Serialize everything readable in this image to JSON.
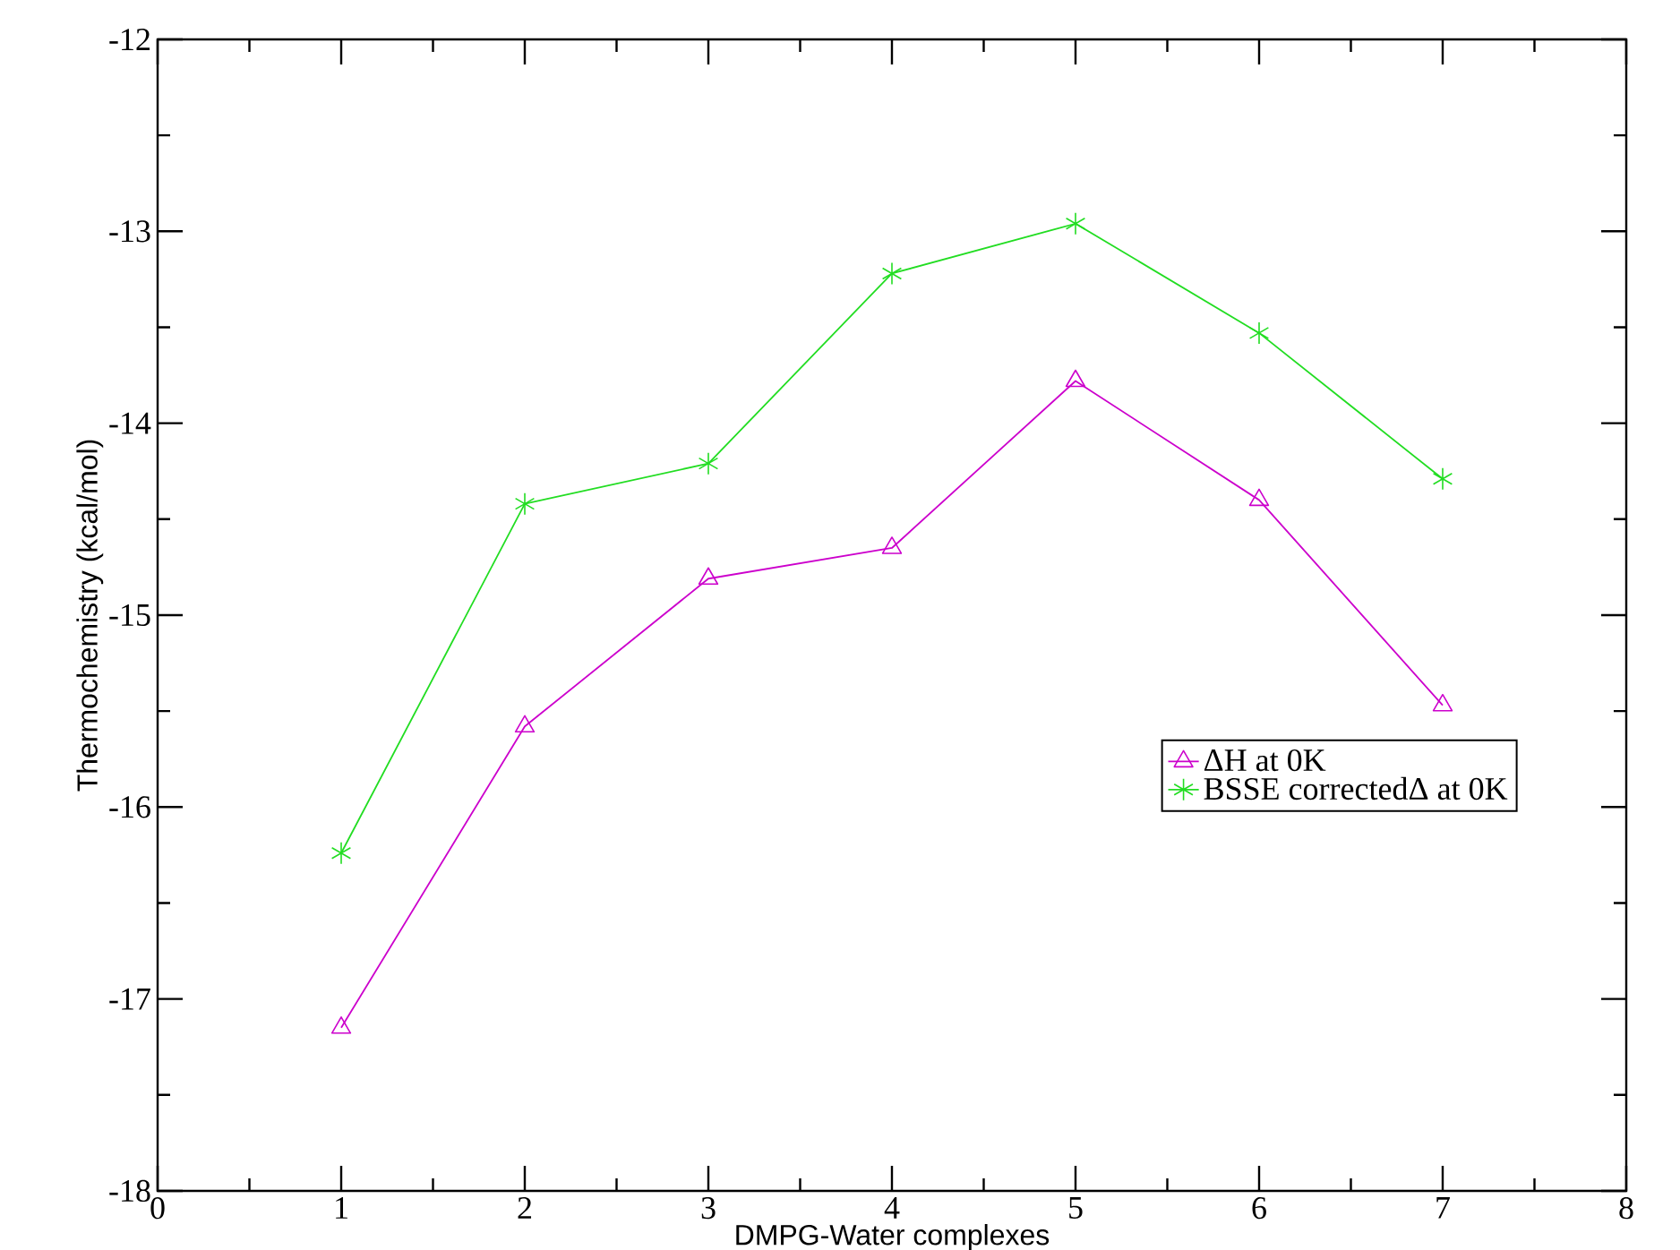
{
  "chart_data": {
    "type": "line",
    "xlabel": "DMPG-Water complexes",
    "ylabel": "Thermochemistry (kcal/mol)",
    "x": [
      1,
      2,
      3,
      4,
      5,
      6,
      7
    ],
    "series": [
      {
        "name": "ΔH at 0K",
        "color": "#cc00cc",
        "marker": "triangle",
        "values": [
          -17.15,
          -15.58,
          -14.81,
          -14.65,
          -13.78,
          -14.4,
          -15.47
        ]
      },
      {
        "name": "BSSE correctedΔ at 0K",
        "color": "#22dd22",
        "marker": "cross",
        "values": [
          -16.24,
          -14.42,
          -14.21,
          -13.22,
          -12.96,
          -13.53,
          -14.29
        ]
      }
    ],
    "xlim": [
      0,
      8
    ],
    "ylim": [
      -18,
      -12
    ],
    "xticks": [
      0,
      1,
      2,
      3,
      4,
      5,
      6,
      7,
      8
    ],
    "yticks": [
      -18,
      -17,
      -16,
      -15,
      -14,
      -13,
      -12
    ],
    "grid": false,
    "legend": "right",
    "line_style": "solid"
  }
}
